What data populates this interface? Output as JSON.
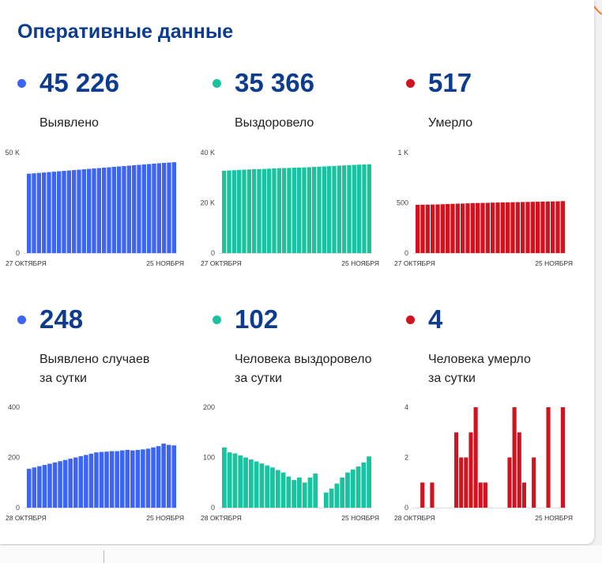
{
  "title": "Оперативные данные",
  "colors": {
    "blue": "#3c64f5",
    "teal": "#19c3a0",
    "red": "#d0131e",
    "title": "#0d3b8e"
  },
  "stats": [
    {
      "value": "45 226",
      "label": [
        "Выявлено",
        ""
      ]
    },
    {
      "value": "35 366",
      "label": [
        "Выздоровело",
        ""
      ]
    },
    {
      "value": "517",
      "label": [
        "Умерло",
        ""
      ]
    },
    {
      "value": "248",
      "label": [
        "Выявлено случаев",
        "за сутки"
      ]
    },
    {
      "value": "102",
      "label": [
        "Человека выздоровело",
        "за сутки"
      ]
    },
    {
      "value": "4",
      "label": [
        "Человека умерло",
        "за сутки"
      ]
    }
  ],
  "chart_data": [
    {
      "type": "bar",
      "color": "#3c64f5",
      "ylim": [
        0,
        50000
      ],
      "yticks": [
        "0",
        "50 K"
      ],
      "ytick_values": [
        0,
        50000
      ],
      "xticks": [
        "27 ОКТЯБРЯ",
        "25 НОЯБРЯ"
      ],
      "values": [
        39500,
        39700,
        39900,
        40100,
        40300,
        40500,
        40700,
        40900,
        41100,
        41300,
        41500,
        41700,
        41900,
        42100,
        42300,
        42500,
        42700,
        42900,
        43100,
        43300,
        43500,
        43700,
        43900,
        44100,
        44300,
        44500,
        44700,
        44900,
        45050,
        45226
      ]
    },
    {
      "type": "bar",
      "color": "#19c3a0",
      "ylim": [
        0,
        40000
      ],
      "yticks": [
        "0",
        "20 K",
        "40 K"
      ],
      "ytick_values": [
        0,
        20000,
        40000
      ],
      "xticks": [
        "27 ОКТЯБРЯ",
        "25 НОЯБРЯ"
      ],
      "values": [
        32800,
        32900,
        33000,
        33100,
        33200,
        33300,
        33400,
        33450,
        33500,
        33600,
        33700,
        33800,
        33850,
        33900,
        34000,
        34050,
        34100,
        34200,
        34300,
        34400,
        34500,
        34600,
        34700,
        34800,
        34900,
        35000,
        35100,
        35200,
        35264,
        35366
      ]
    },
    {
      "type": "bar",
      "color": "#d0131e",
      "ylim": [
        0,
        1000
      ],
      "yticks": [
        "0",
        "500",
        "1 K"
      ],
      "ytick_values": [
        0,
        500,
        1000
      ],
      "xticks": [
        "27 ОКТЯБРЯ",
        "25 НОЯБРЯ"
      ],
      "values": [
        480,
        481,
        482,
        483,
        484,
        486,
        488,
        490,
        492,
        493,
        495,
        497,
        498,
        499,
        500,
        502,
        503,
        504,
        505,
        506,
        507,
        508,
        509,
        510,
        511,
        512,
        513,
        514,
        515,
        517
      ]
    },
    {
      "type": "bar",
      "color": "#3c64f5",
      "ylim": [
        0,
        400
      ],
      "yticks": [
        "0",
        "200",
        "400"
      ],
      "ytick_values": [
        0,
        200,
        400
      ],
      "xticks": [
        "28 ОКТЯБРЯ",
        "25 НОЯБРЯ"
      ],
      "values": [
        155,
        160,
        165,
        170,
        175,
        180,
        185,
        190,
        195,
        200,
        205,
        210,
        215,
        220,
        222,
        223,
        225,
        225,
        228,
        230,
        228,
        230,
        232,
        235,
        240,
        245,
        255,
        250,
        248
      ]
    },
    {
      "type": "bar",
      "color": "#19c3a0",
      "ylim": [
        0,
        200
      ],
      "yticks": [
        "0",
        "100",
        "200"
      ],
      "ytick_values": [
        0,
        100,
        200
      ],
      "xticks": [
        "28 ОКТЯБРЯ",
        "25 НОЯБРЯ"
      ],
      "values": [
        120,
        110,
        108,
        104,
        100,
        96,
        92,
        88,
        84,
        80,
        75,
        70,
        62,
        55,
        60,
        50,
        60,
        68,
        0,
        30,
        38,
        48,
        60,
        70,
        76,
        82,
        90,
        102
      ]
    },
    {
      "type": "bar",
      "color": "#d0131e",
      "ylim": [
        0,
        4
      ],
      "yticks": [
        "0",
        "2",
        "4"
      ],
      "ytick_values": [
        0,
        2,
        4
      ],
      "xticks": [
        "28 ОКТЯБРЯ",
        "25 НОЯБРЯ"
      ],
      "values": [
        0,
        1,
        0,
        1,
        0,
        0,
        0,
        0,
        3,
        2,
        2,
        3,
        4,
        1,
        1,
        0,
        0,
        0,
        0,
        2,
        4,
        3,
        1,
        0,
        2,
        0,
        0,
        4,
        0,
        0,
        4
      ]
    }
  ]
}
